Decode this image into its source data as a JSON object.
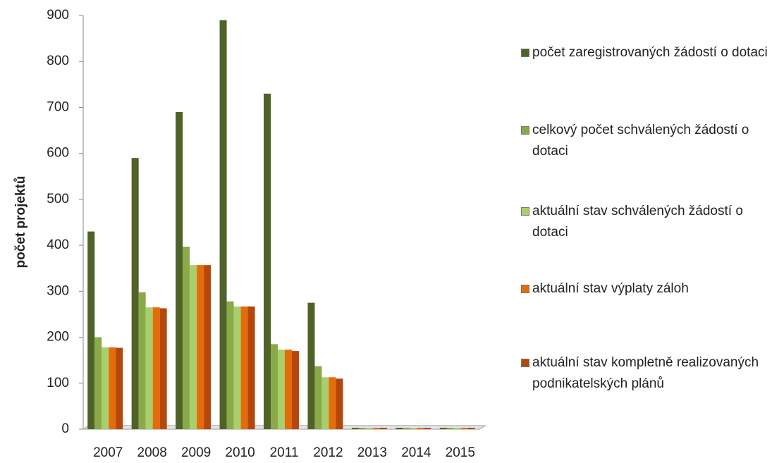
{
  "chart_data": {
    "type": "bar",
    "y_label": "počet projektů",
    "categories": [
      "2007",
      "2008",
      "2009",
      "2010",
      "2011",
      "2012",
      "2013",
      "2014",
      "2015"
    ],
    "series": [
      {
        "name": "počet zaregistrovaných žádostí o dotaci",
        "color": "#4f6228",
        "values": [
          430,
          590,
          690,
          890,
          730,
          275,
          0,
          0,
          0
        ]
      },
      {
        "name": "celkový počet schválených žádostí o dotaci",
        "color": "#8aaa4a",
        "values": [
          200,
          298,
          397,
          278,
          185,
          137,
          0,
          0,
          0
        ]
      },
      {
        "name": "aktuální stav schválených žádostí o dotaci",
        "color": "#a9cf6c",
        "values": [
          178,
          265,
          357,
          267,
          173,
          113,
          0,
          0,
          0
        ]
      },
      {
        "name": "aktuální stav výplaty záloh",
        "color": "#e46c0a",
        "values": [
          178,
          265,
          357,
          267,
          173,
          113,
          0,
          0,
          0
        ]
      },
      {
        "name": "aktuální stav kompletně realizovaných podnikatelských plánů",
        "color": "#b5470c",
        "values": [
          177,
          263,
          357,
          267,
          170,
          110,
          0,
          0,
          0
        ]
      }
    ],
    "ylim": [
      0,
      900
    ],
    "yticks": [
      0,
      100,
      200,
      300,
      400,
      500,
      600,
      700,
      800,
      900
    ],
    "grid": false,
    "legend": "right"
  }
}
